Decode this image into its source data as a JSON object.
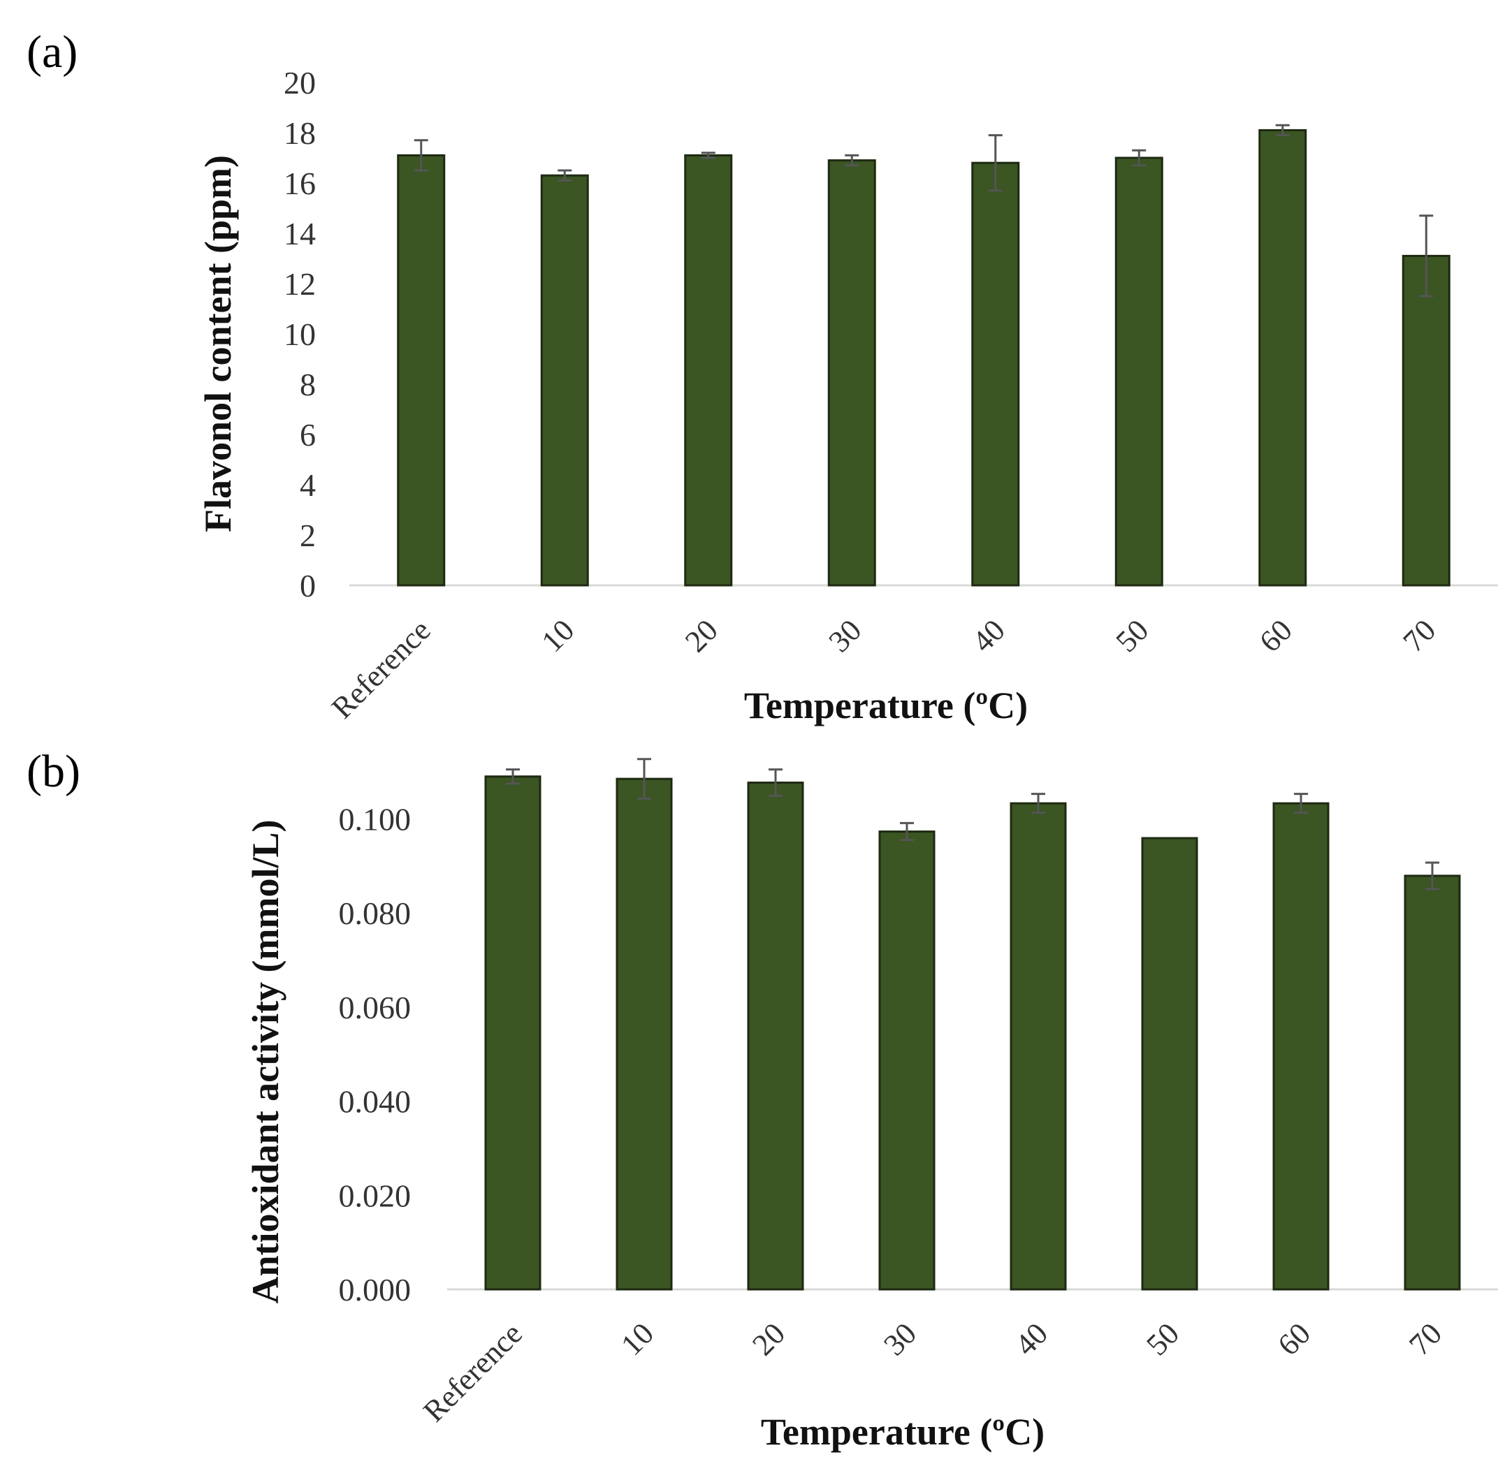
{
  "figure": {
    "bar_color": "#3b5523",
    "bar_edge_color": "#1e2a12",
    "error_color": "#555555"
  },
  "chart_data": [
    {
      "type": "bar",
      "panel_label": "(a)",
      "title": "",
      "categories": [
        "Reference",
        "10",
        "20",
        "30",
        "40",
        "50",
        "60",
        "70"
      ],
      "values": [
        17.1,
        16.3,
        17.1,
        16.9,
        16.8,
        17.0,
        18.1,
        13.1
      ],
      "errors": [
        0.6,
        0.2,
        0.1,
        0.2,
        1.1,
        0.3,
        0.2,
        1.6
      ],
      "xlabel": "Temperature (ºC)",
      "ylabel": "Flavonol content (ppm)",
      "ylim": [
        0,
        20
      ],
      "yticks": [
        0,
        2,
        4,
        6,
        8,
        10,
        12,
        14,
        16,
        18,
        20
      ],
      "ytick_labels": [
        "0",
        "2",
        "4",
        "6",
        "8",
        "10",
        "12",
        "14",
        "16",
        "18",
        "20"
      ],
      "grid": false
    },
    {
      "type": "bar",
      "panel_label": "(b)",
      "title": "",
      "categories": [
        "Reference",
        "10",
        "20",
        "30",
        "40",
        "50",
        "60",
        "70"
      ],
      "values": [
        0.109,
        0.1085,
        0.1077,
        0.0973,
        0.1033,
        0.0959,
        0.1033,
        0.0879
      ],
      "errors": [
        0.0015,
        0.0042,
        0.0028,
        0.0018,
        0.002,
        0.0,
        0.002,
        0.0028
      ],
      "xlabel": "Temperature (ºC)",
      "ylabel": "Antioxidant activity (mmol/L)",
      "ylim": [
        0,
        0.11
      ],
      "yticks": [
        0,
        0.02,
        0.04,
        0.06,
        0.08,
        0.1
      ],
      "ytick_labels": [
        "0.000",
        "0.020",
        "0.040",
        "0.060",
        "0.080",
        "0.100"
      ],
      "grid": false
    }
  ]
}
